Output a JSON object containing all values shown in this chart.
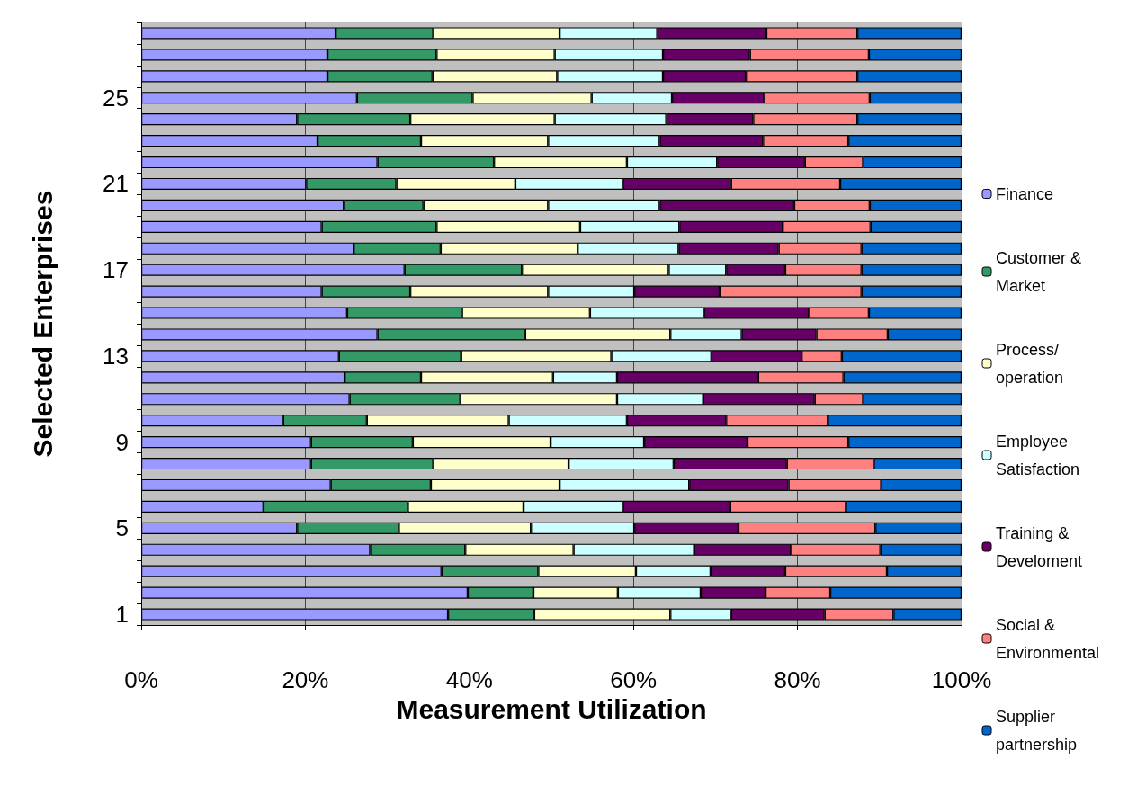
{
  "chart_data": {
    "type": "bar",
    "orientation": "horizontal",
    "stacked": true,
    "xlabel": "Measurement Utilization",
    "ylabel": "Selected Enterprises",
    "categories": [
      null,
      null,
      null,
      "25",
      null,
      null,
      null,
      "21",
      null,
      null,
      null,
      "17",
      null,
      null,
      null,
      "13",
      null,
      null,
      null,
      "9",
      null,
      null,
      null,
      "5",
      null,
      null,
      null,
      "1"
    ],
    "xlim": [
      0,
      100
    ],
    "xticks": [
      {
        "value": 0,
        "label": "0%"
      },
      {
        "value": 20,
        "label": "20%"
      },
      {
        "value": 40,
        "label": "40%"
      },
      {
        "value": 60,
        "label": "60%"
      },
      {
        "value": 80,
        "label": "80%"
      },
      {
        "value": 100,
        "label": "100%"
      }
    ],
    "grid": "x",
    "legend": "right",
    "series": [
      {
        "name": "Finance",
        "color": "#9999ff",
        "values": [
          23.7,
          22.7,
          22.7,
          26.3,
          19.0,
          21.5,
          28.8,
          20.1,
          24.7,
          22.0,
          25.9,
          32.1,
          22.0,
          25.1,
          28.8,
          24.1,
          24.8,
          25.4,
          17.3,
          20.7,
          20.7,
          23.1,
          14.9,
          19.0,
          27.9,
          36.6,
          39.8,
          37.4
        ]
      },
      {
        "name": "Customer & Market",
        "color": "#339966",
        "values": [
          11.9,
          13.3,
          12.8,
          14.1,
          13.8,
          12.6,
          14.2,
          11.0,
          9.7,
          14.0,
          10.6,
          14.3,
          10.8,
          14.0,
          18.0,
          14.9,
          9.3,
          13.5,
          10.2,
          12.4,
          14.9,
          12.2,
          17.6,
          12.4,
          11.6,
          11.8,
          8.0,
          10.5
        ]
      },
      {
        "name": "Process/ operation",
        "color": "#ffffcc",
        "values": [
          15.4,
          14.4,
          15.2,
          14.5,
          17.6,
          15.5,
          16.2,
          14.5,
          15.2,
          17.5,
          16.7,
          17.9,
          16.8,
          15.6,
          17.7,
          18.3,
          16.1,
          19.1,
          17.3,
          16.8,
          16.5,
          15.7,
          14.1,
          16.1,
          13.2,
          11.9,
          10.3,
          16.6
        ]
      },
      {
        "name": "Employee Satisfaction",
        "color": "#ccffff",
        "values": [
          11.9,
          13.2,
          12.9,
          9.8,
          13.6,
          13.6,
          11.0,
          13.1,
          13.6,
          12.1,
          12.3,
          7.0,
          10.5,
          13.9,
          8.7,
          12.2,
          7.8,
          10.5,
          14.4,
          11.4,
          12.8,
          15.8,
          12.1,
          12.6,
          14.7,
          9.1,
          10.1,
          7.4
        ]
      },
      {
        "name": "Training & Develoment",
        "color": "#660066",
        "values": [
          13.3,
          10.6,
          10.1,
          11.2,
          10.6,
          12.6,
          10.7,
          13.2,
          16.4,
          12.6,
          12.2,
          7.2,
          10.4,
          12.8,
          9.1,
          11.0,
          17.2,
          13.6,
          12.1,
          12.6,
          13.8,
          12.1,
          13.1,
          12.7,
          11.8,
          9.1,
          7.9,
          11.4
        ]
      },
      {
        "name": "Social & Environmental",
        "color": "#ff8080",
        "values": [
          11.1,
          14.5,
          13.6,
          12.9,
          12.7,
          10.4,
          7.1,
          13.3,
          9.2,
          10.7,
          10.1,
          9.3,
          17.3,
          7.3,
          8.7,
          4.9,
          10.4,
          5.9,
          12.4,
          12.3,
          10.6,
          11.3,
          14.1,
          16.7,
          10.9,
          12.4,
          7.9,
          8.4
        ]
      },
      {
        "name": "Supplier partnership",
        "color": "#0066cc",
        "values": [
          12.7,
          11.3,
          12.7,
          11.2,
          12.7,
          13.8,
          12.0,
          14.8,
          11.2,
          11.1,
          12.2,
          12.2,
          12.2,
          11.3,
          9.0,
          14.6,
          14.4,
          12.0,
          16.3,
          13.8,
          10.7,
          9.8,
          14.1,
          10.5,
          9.9,
          9.1,
          16.0,
          8.3
        ]
      }
    ]
  }
}
